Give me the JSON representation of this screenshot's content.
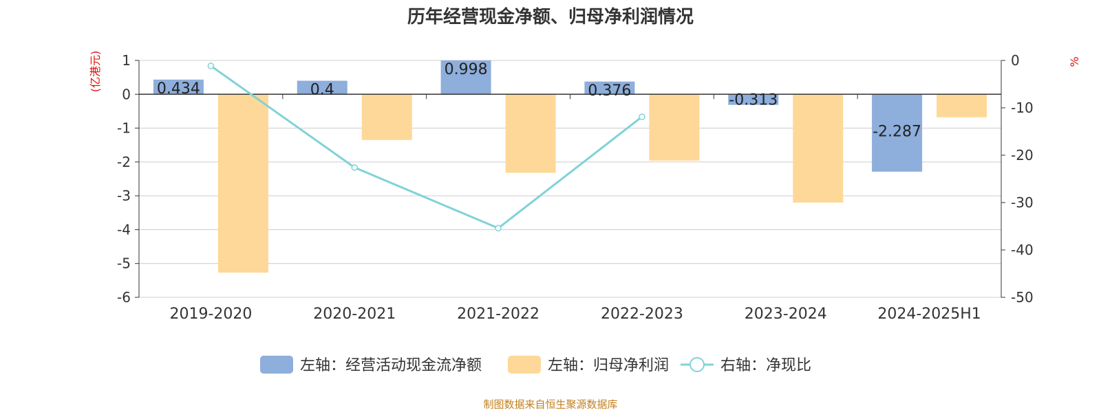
{
  "chart_data": {
    "type": "bar",
    "title": "历年经营现金净额、归母净利润情况",
    "categories": [
      "2019-2020",
      "2020-2021",
      "2021-2022",
      "2022-2023",
      "2023-2024",
      "2024-2025H1"
    ],
    "left_axis": {
      "label": "(亿港元)",
      "ylim": [
        -6,
        1
      ],
      "ticks": [
        1,
        0,
        -1,
        -2,
        -3,
        -4,
        -5,
        -6
      ]
    },
    "right_axis": {
      "label": "%",
      "ylim": [
        -50,
        0
      ],
      "ticks": [
        0,
        -10,
        -20,
        -30,
        -40,
        -50
      ]
    },
    "series": [
      {
        "name": "左轴：经营活动现金流净额",
        "type": "bar",
        "axis": "left",
        "color": "#8eaedb",
        "values": [
          0.434,
          0.4,
          0.998,
          0.376,
          -0.313,
          -2.287
        ],
        "show_labels": true
      },
      {
        "name": "左轴：归母净利润",
        "type": "bar",
        "axis": "left",
        "color": "#fed898",
        "values": [
          -5.27,
          -1.35,
          -2.32,
          -1.96,
          -3.2,
          -0.68
        ],
        "show_labels": false
      },
      {
        "name": "右轴：净现比",
        "type": "line",
        "axis": "right",
        "color": "#7fd3d8",
        "values": [
          -1.15,
          -22.6,
          -35.4,
          -11.9,
          null,
          null
        ]
      }
    ],
    "grid": true,
    "legend_position": "bottom"
  },
  "footer": "制图数据来自恒生聚源数据库",
  "colors": {
    "title": "#333333",
    "axis_label": "#e01010",
    "footer": "#c08020",
    "grid": "#cccccc"
  }
}
